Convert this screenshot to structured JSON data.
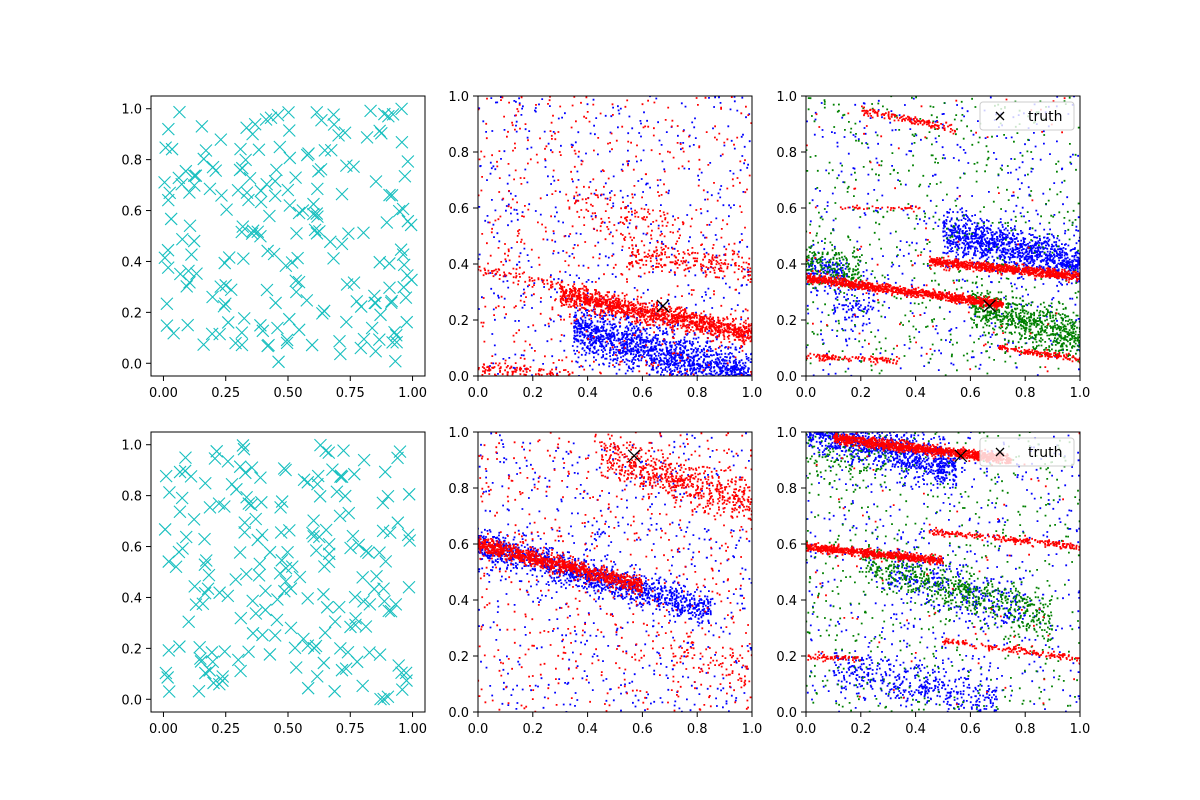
{
  "chart_data": [
    {
      "type": "scatter",
      "xlim": [
        -0.05,
        1.05
      ],
      "ylim": [
        -0.05,
        1.05
      ],
      "xticks": [
        "0.00",
        "0.25",
        "0.50",
        "0.75",
        "1.00"
      ],
      "yticks": [
        "0.0",
        "0.2",
        "0.4",
        "0.6",
        "0.8",
        "1.0"
      ],
      "xtick_values": [
        0,
        0.25,
        0.5,
        0.75,
        1.0
      ],
      "ytick_values": [
        0,
        0.2,
        0.4,
        0.6,
        0.8,
        1.0
      ],
      "series": [
        {
          "marker": "x",
          "color": "#17bfbf",
          "count": 200,
          "distribution": "uniform",
          "x_range": [
            0,
            1
          ],
          "y_range": [
            0,
            1
          ]
        }
      ]
    },
    {
      "type": "scatter",
      "xlim": [
        0,
        1
      ],
      "ylim": [
        0,
        1
      ],
      "xticks": [
        "0.0",
        "0.2",
        "0.4",
        "0.6",
        "0.8",
        "1.0"
      ],
      "yticks": [
        "0.0",
        "0.2",
        "0.4",
        "0.6",
        "0.8",
        "1.0"
      ],
      "xtick_values": [
        0,
        0.2,
        0.4,
        0.6,
        0.8,
        1.0
      ],
      "ytick_values": [
        0,
        0.2,
        0.4,
        0.6,
        0.8,
        1.0
      ],
      "series": [
        {
          "color": "#0000ff",
          "background": 550,
          "bands": [
            {
              "x": [
                0.35,
                1.0
              ],
              "line": [
                0.27,
                -0.28
              ],
              "spread": 0.045,
              "count": 1600
            }
          ]
        },
        {
          "color": "#ff0000",
          "background": 550,
          "bands": [
            {
              "x": [
                0.3,
                1.0
              ],
              "line": [
                0.35,
                -0.2
              ],
              "spread": 0.02,
              "count": 1200
            },
            {
              "x": [
                0.0,
                0.4
              ],
              "line": [
                0.38,
                -0.2
              ],
              "spread": 0.01,
              "count": 90
            },
            {
              "x": [
                0.0,
                0.35
              ],
              "line": [
                0.03,
                -0.08
              ],
              "spread": 0.012,
              "count": 120
            },
            {
              "x": [
                0.55,
                1.0
              ],
              "line": [
                0.48,
                -0.1
              ],
              "spread": 0.025,
              "count": 220
            },
            {
              "x": [
                0.35,
                0.75
              ],
              "line": [
                0.72,
                -0.3
              ],
              "spread": 0.05,
              "count": 120
            }
          ]
        }
      ],
      "truth": [
        [
          0.675,
          0.25
        ]
      ]
    },
    {
      "type": "scatter",
      "xlim": [
        0,
        1
      ],
      "ylim": [
        0,
        1
      ],
      "xticks": [
        "0.0",
        "0.2",
        "0.4",
        "0.6",
        "0.8",
        "1.0"
      ],
      "yticks": [
        "0.0",
        "0.2",
        "0.4",
        "0.6",
        "0.8",
        "1.0"
      ],
      "xtick_values": [
        0,
        0.2,
        0.4,
        0.6,
        0.8,
        1.0
      ],
      "ytick_values": [
        0,
        0.2,
        0.4,
        0.6,
        0.8,
        1.0
      ],
      "legend": {
        "label": "truth",
        "position": "top-right"
      },
      "series": [
        {
          "color": "#0000ff",
          "background": 500,
          "bands": [
            {
              "x": [
                0.5,
                1.0
              ],
              "line": [
                0.62,
                -0.22
              ],
              "spread": 0.04,
              "count": 1100
            },
            {
              "x": [
                0.0,
                0.15
              ],
              "line": [
                0.38,
                -0.1
              ],
              "spread": 0.03,
              "count": 150
            },
            {
              "x": [
                0.1,
                0.25
              ],
              "line": [
                0.25,
                0.0
              ],
              "spread": 0.05,
              "count": 100
            }
          ]
        },
        {
          "color": "#008000",
          "background": 550,
          "bands": [
            {
              "x": [
                0.6,
                1.0
              ],
              "line": [
                0.45,
                -0.32
              ],
              "spread": 0.04,
              "count": 700
            },
            {
              "x": [
                0.0,
                0.2
              ],
              "line": [
                0.42,
                -0.2
              ],
              "spread": 0.04,
              "count": 200
            }
          ]
        },
        {
          "color": "#ff0000",
          "background": 80,
          "bands": [
            {
              "x": [
                0.0,
                0.72
              ],
              "line": [
                0.35,
                -0.13
              ],
              "spread": 0.008,
              "count": 1000
            },
            {
              "x": [
                0.45,
                1.0
              ],
              "line": [
                0.455,
                -0.1
              ],
              "spread": 0.008,
              "count": 800
            },
            {
              "x": [
                0.2,
                0.55
              ],
              "line": [
                0.99,
                -0.2
              ],
              "spread": 0.008,
              "count": 150
            },
            {
              "x": [
                0.0,
                0.35
              ],
              "line": [
                0.07,
                -0.04
              ],
              "spread": 0.006,
              "count": 110
            },
            {
              "x": [
                0.7,
                1.0
              ],
              "line": [
                0.2,
                -0.14
              ],
              "spread": 0.006,
              "count": 140
            },
            {
              "x": [
                0.12,
                0.42
              ],
              "line": [
                0.6,
                0.0
              ],
              "spread": 0.003,
              "count": 40
            }
          ]
        }
      ],
      "truth": [
        [
          0.67,
          0.25
        ]
      ]
    },
    {
      "type": "scatter",
      "xlim": [
        -0.05,
        1.05
      ],
      "ylim": [
        -0.05,
        1.05
      ],
      "xticks": [
        "0.00",
        "0.25",
        "0.50",
        "0.75",
        "1.00"
      ],
      "yticks": [
        "0.0",
        "0.2",
        "0.4",
        "0.6",
        "0.8",
        "1.0"
      ],
      "xtick_values": [
        0,
        0.25,
        0.5,
        0.75,
        1.0
      ],
      "ytick_values": [
        0,
        0.2,
        0.4,
        0.6,
        0.8,
        1.0
      ],
      "series": [
        {
          "marker": "x",
          "color": "#17bfbf",
          "count": 200,
          "distribution": "uniform",
          "x_range": [
            0,
            1
          ],
          "y_range": [
            0,
            1
          ]
        }
      ]
    },
    {
      "type": "scatter",
      "xlim": [
        0,
        1
      ],
      "ylim": [
        0,
        1
      ],
      "xticks": [
        "0.0",
        "0.2",
        "0.4",
        "0.6",
        "0.8",
        "1.0"
      ],
      "yticks": [
        "0.0",
        "0.2",
        "0.4",
        "0.6",
        "0.8",
        "1.0"
      ],
      "xtick_values": [
        0,
        0.2,
        0.4,
        0.6,
        0.8,
        1.0
      ],
      "ytick_values": [
        0,
        0.2,
        0.4,
        0.6,
        0.8,
        1.0
      ],
      "series": [
        {
          "color": "#0000ff",
          "background": 600,
          "bands": [
            {
              "x": [
                0.0,
                0.85
              ],
              "line": [
                0.6,
                -0.28
              ],
              "spread": 0.03,
              "count": 1200
            }
          ]
        },
        {
          "color": "#ff0000",
          "background": 600,
          "bands": [
            {
              "x": [
                0.0,
                0.6
              ],
              "line": [
                0.6,
                -0.25
              ],
              "spread": 0.015,
              "count": 1000
            },
            {
              "x": [
                0.45,
                1.0
              ],
              "line": [
                1.05,
                -0.3
              ],
              "spread": 0.04,
              "count": 600
            },
            {
              "x": [
                0.7,
                1.0
              ],
              "line": [
                0.35,
                -0.2
              ],
              "spread": 0.05,
              "count": 80
            }
          ]
        }
      ],
      "truth": [
        [
          0.57,
          0.915
        ]
      ]
    },
    {
      "type": "scatter",
      "xlim": [
        0,
        1
      ],
      "ylim": [
        0,
        1
      ],
      "xticks": [
        "0.0",
        "0.2",
        "0.4",
        "0.6",
        "0.8",
        "1.0"
      ],
      "yticks": [
        "0.0",
        "0.2",
        "0.4",
        "0.6",
        "0.8",
        "1.0"
      ],
      "xtick_values": [
        0,
        0.2,
        0.4,
        0.6,
        0.8,
        1.0
      ],
      "ytick_values": [
        0,
        0.2,
        0.4,
        0.6,
        0.8,
        1.0
      ],
      "legend": {
        "label": "truth",
        "position": "top-right"
      },
      "series": [
        {
          "color": "#0000ff",
          "background": 550,
          "bands": [
            {
              "x": [
                0.0,
                0.55
              ],
              "line": [
                1.02,
                -0.28
              ],
              "spread": 0.04,
              "count": 1100
            },
            {
              "x": [
                0.1,
                0.7
              ],
              "line": [
                0.18,
                -0.2
              ],
              "spread": 0.04,
              "count": 400
            },
            {
              "x": [
                0.3,
                0.8
              ],
              "line": [
                0.6,
                -0.3
              ],
              "spread": 0.05,
              "count": 300
            }
          ]
        },
        {
          "color": "#008000",
          "background": 550,
          "bands": [
            {
              "x": [
                0.2,
                0.9
              ],
              "line": [
                0.6,
                -0.3
              ],
              "spread": 0.04,
              "count": 600
            },
            {
              "x": [
                0.0,
                0.3
              ],
              "line": [
                0.9,
                0.0
              ],
              "spread": 0.06,
              "count": 120
            }
          ]
        },
        {
          "color": "#ff0000",
          "background": 80,
          "bands": [
            {
              "x": [
                0.1,
                0.75
              ],
              "line": [
                0.99,
                -0.12
              ],
              "spread": 0.009,
              "count": 1100
            },
            {
              "x": [
                0.0,
                0.5
              ],
              "line": [
                0.59,
                -0.1
              ],
              "spread": 0.007,
              "count": 700
            },
            {
              "x": [
                0.45,
                1.0
              ],
              "line": [
                0.69,
                -0.1
              ],
              "spread": 0.006,
              "count": 220
            },
            {
              "x": [
                0.0,
                0.2
              ],
              "line": [
                0.2,
                -0.05
              ],
              "spread": 0.006,
              "count": 60
            },
            {
              "x": [
                0.5,
                1.0
              ],
              "line": [
                0.32,
                -0.13
              ],
              "spread": 0.006,
              "count": 160
            }
          ]
        }
      ],
      "truth": [
        [
          0.565,
          0.915
        ]
      ]
    }
  ]
}
